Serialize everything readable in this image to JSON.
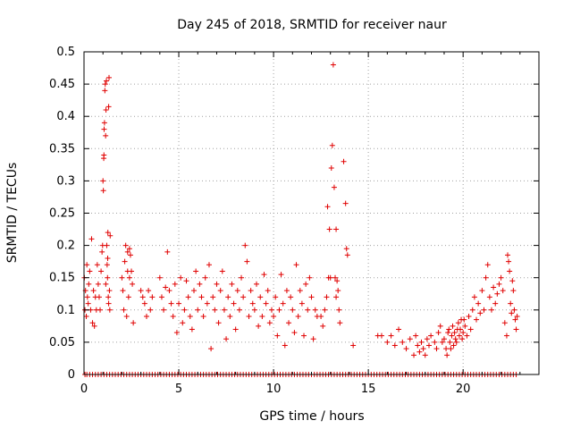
{
  "chart_data": {
    "type": "scatter",
    "title": "Day 245 of 2018, SRMTID for receiver naur",
    "xlabel": "GPS time / hours",
    "ylabel": "SRMTID / TECUs",
    "xlim": [
      0,
      24
    ],
    "ylim": [
      0,
      0.5
    ],
    "grid": true,
    "marker": "+",
    "color": "#e00000",
    "x_ticks": [
      0,
      5,
      10,
      15,
      20
    ],
    "x_tick_labels": [
      "0",
      "5",
      "10",
      "15",
      "20"
    ],
    "y_ticks": [
      0,
      0.05,
      0.1,
      0.15,
      0.2,
      0.25,
      0.3,
      0.35,
      0.4,
      0.45,
      0.5
    ],
    "y_tick_labels": [
      "0",
      "0.05",
      "0.1",
      "0.15",
      "0.2",
      "0.25",
      "0.3",
      "0.35",
      "0.4",
      "0.45",
      "0.5"
    ],
    "series": [
      {
        "name": "SRMTID",
        "points": [
          [
            0.02,
            0.15
          ],
          [
            0.05,
            0.1
          ],
          [
            0.08,
            0.13
          ],
          [
            0.12,
            0.09
          ],
          [
            0.15,
            0.17
          ],
          [
            0.18,
            0.12
          ],
          [
            0.22,
            0.11
          ],
          [
            0.25,
            0.14
          ],
          [
            0.3,
            0.16
          ],
          [
            0.35,
            0.1
          ],
          [
            0.4,
            0.21
          ],
          [
            0.45,
            0.08
          ],
          [
            0.5,
            0.13
          ],
          [
            0.55,
            0.075
          ],
          [
            0.6,
            0.12
          ],
          [
            0.65,
            0.1
          ],
          [
            0.7,
            0.17
          ],
          [
            0.75,
            0.14
          ],
          [
            0.8,
            0.12
          ],
          [
            0.85,
            0.1
          ],
          [
            0.9,
            0.16
          ],
          [
            0.95,
            0.19
          ],
          [
            1.0,
            0.3
          ],
          [
            1.02,
            0.285
          ],
          [
            1.04,
            0.335
          ],
          [
            1.06,
            0.38
          ],
          [
            1.08,
            0.39
          ],
          [
            1.1,
            0.44
          ],
          [
            1.12,
            0.45
          ],
          [
            1.14,
            0.37
          ],
          [
            1.16,
            0.41
          ],
          [
            1.18,
            0.455
          ],
          [
            1.2,
            0.2
          ],
          [
            1.22,
            0.17
          ],
          [
            1.24,
            0.15
          ],
          [
            1.26,
            0.22
          ],
          [
            1.28,
            0.12
          ],
          [
            1.3,
            0.415
          ],
          [
            1.32,
            0.46
          ],
          [
            1.34,
            0.13
          ],
          [
            1.36,
            0.1
          ],
          [
            1.38,
            0.215
          ],
          [
            1.05,
            0.34
          ],
          [
            0.98,
            0.2
          ],
          [
            1.15,
            0.14
          ],
          [
            1.25,
            0.18
          ],
          [
            1.3,
            0.11
          ],
          [
            2.0,
            0.15
          ],
          [
            2.05,
            0.13
          ],
          [
            2.1,
            0.1
          ],
          [
            2.15,
            0.175
          ],
          [
            2.2,
            0.2
          ],
          [
            2.25,
            0.09
          ],
          [
            2.3,
            0.19
          ],
          [
            2.35,
            0.12
          ],
          [
            2.4,
            0.15
          ],
          [
            2.45,
            0.185
          ],
          [
            2.5,
            0.16
          ],
          [
            2.55,
            0.14
          ],
          [
            2.6,
            0.08
          ],
          [
            2.3,
            0.16
          ],
          [
            2.4,
            0.195
          ],
          [
            3.0,
            0.13
          ],
          [
            3.1,
            0.12
          ],
          [
            3.2,
            0.11
          ],
          [
            3.3,
            0.09
          ],
          [
            3.4,
            0.13
          ],
          [
            3.5,
            0.1
          ],
          [
            3.6,
            0.12
          ],
          [
            4.0,
            0.15
          ],
          [
            4.1,
            0.12
          ],
          [
            4.2,
            0.1
          ],
          [
            4.3,
            0.135
          ],
          [
            4.4,
            0.19
          ],
          [
            4.5,
            0.13
          ],
          [
            4.6,
            0.11
          ],
          [
            4.7,
            0.09
          ],
          [
            4.8,
            0.14
          ],
          [
            4.9,
            0.065
          ],
          [
            5.0,
            0.11
          ],
          [
            5.1,
            0.15
          ],
          [
            5.2,
            0.08
          ],
          [
            5.3,
            0.1
          ],
          [
            5.4,
            0.145
          ],
          [
            5.5,
            0.12
          ],
          [
            5.6,
            0.09
          ],
          [
            5.7,
            0.07
          ],
          [
            5.8,
            0.13
          ],
          [
            5.9,
            0.16
          ],
          [
            6.0,
            0.1
          ],
          [
            6.1,
            0.14
          ],
          [
            6.2,
            0.12
          ],
          [
            6.3,
            0.09
          ],
          [
            6.4,
            0.15
          ],
          [
            6.5,
            0.11
          ],
          [
            6.6,
            0.17
          ],
          [
            6.7,
            0.04
          ],
          [
            6.8,
            0.12
          ],
          [
            6.9,
            0.1
          ],
          [
            7.0,
            0.14
          ],
          [
            7.1,
            0.08
          ],
          [
            7.2,
            0.13
          ],
          [
            7.3,
            0.16
          ],
          [
            7.4,
            0.1
          ],
          [
            7.5,
            0.055
          ],
          [
            7.6,
            0.12
          ],
          [
            7.7,
            0.09
          ],
          [
            7.8,
            0.14
          ],
          [
            7.9,
            0.11
          ],
          [
            8.0,
            0.07
          ],
          [
            8.1,
            0.13
          ],
          [
            8.2,
            0.1
          ],
          [
            8.3,
            0.15
          ],
          [
            8.4,
            0.12
          ],
          [
            8.5,
            0.2
          ],
          [
            8.6,
            0.175
          ],
          [
            8.7,
            0.09
          ],
          [
            8.8,
            0.13
          ],
          [
            8.9,
            0.11
          ],
          [
            9.0,
            0.1
          ],
          [
            9.1,
            0.14
          ],
          [
            9.2,
            0.075
          ],
          [
            9.3,
            0.12
          ],
          [
            9.4,
            0.09
          ],
          [
            9.5,
            0.155
          ],
          [
            9.6,
            0.11
          ],
          [
            9.7,
            0.13
          ],
          [
            9.8,
            0.08
          ],
          [
            9.9,
            0.1
          ],
          [
            10.0,
            0.09
          ],
          [
            10.1,
            0.12
          ],
          [
            10.2,
            0.06
          ],
          [
            10.3,
            0.1
          ],
          [
            10.4,
            0.155
          ],
          [
            10.5,
            0.11
          ],
          [
            10.6,
            0.045
          ],
          [
            10.7,
            0.13
          ],
          [
            10.8,
            0.08
          ],
          [
            10.9,
            0.12
          ],
          [
            11.0,
            0.1
          ],
          [
            11.1,
            0.065
          ],
          [
            11.2,
            0.17
          ],
          [
            11.3,
            0.09
          ],
          [
            11.4,
            0.13
          ],
          [
            11.5,
            0.11
          ],
          [
            11.6,
            0.06
          ],
          [
            11.7,
            0.14
          ],
          [
            11.8,
            0.1
          ],
          [
            11.9,
            0.15
          ],
          [
            12.0,
            0.12
          ],
          [
            12.1,
            0.055
          ],
          [
            12.2,
            0.1
          ],
          [
            12.3,
            0.09
          ],
          [
            12.5,
            0.09
          ],
          [
            12.6,
            0.075
          ],
          [
            12.7,
            0.1
          ],
          [
            12.8,
            0.12
          ],
          [
            12.85,
            0.26
          ],
          [
            12.9,
            0.15
          ],
          [
            12.95,
            0.225
          ],
          [
            13.0,
            0.15
          ],
          [
            13.05,
            0.32
          ],
          [
            13.1,
            0.355
          ],
          [
            13.15,
            0.48
          ],
          [
            13.2,
            0.29
          ],
          [
            13.25,
            0.15
          ],
          [
            13.3,
            0.12
          ],
          [
            13.35,
            0.145
          ],
          [
            13.4,
            0.13
          ],
          [
            13.45,
            0.1
          ],
          [
            13.5,
            0.08
          ],
          [
            13.7,
            0.33
          ],
          [
            13.8,
            0.265
          ],
          [
            13.85,
            0.195
          ],
          [
            13.9,
            0.185
          ],
          [
            14.2,
            0.045
          ],
          [
            13.3,
            0.225
          ],
          [
            15.5,
            0.06
          ],
          [
            15.7,
            0.06
          ],
          [
            16.0,
            0.05
          ],
          [
            16.2,
            0.06
          ],
          [
            16.4,
            0.045
          ],
          [
            16.6,
            0.07
          ],
          [
            16.8,
            0.05
          ],
          [
            17.0,
            0.04
          ],
          [
            17.2,
            0.055
          ],
          [
            17.4,
            0.03
          ],
          [
            17.5,
            0.06
          ],
          [
            17.6,
            0.045
          ],
          [
            17.7,
            0.035
          ],
          [
            17.8,
            0.05
          ],
          [
            17.9,
            0.04
          ],
          [
            18.0,
            0.03
          ],
          [
            18.1,
            0.055
          ],
          [
            18.2,
            0.045
          ],
          [
            18.3,
            0.06
          ],
          [
            18.5,
            0.05
          ],
          [
            18.6,
            0.04
          ],
          [
            18.7,
            0.065
          ],
          [
            18.8,
            0.075
          ],
          [
            18.9,
            0.05
          ],
          [
            19.0,
            0.055
          ],
          [
            19.1,
            0.04
          ],
          [
            19.2,
            0.065
          ],
          [
            19.3,
            0.05
          ],
          [
            19.4,
            0.06
          ],
          [
            19.5,
            0.045
          ],
          [
            19.6,
            0.055
          ],
          [
            19.7,
            0.07
          ],
          [
            19.8,
            0.06
          ],
          [
            19.9,
            0.085
          ],
          [
            20.0,
            0.065
          ],
          [
            20.1,
            0.075
          ],
          [
            20.2,
            0.06
          ],
          [
            20.3,
            0.09
          ],
          [
            20.4,
            0.07
          ],
          [
            19.15,
            0.03
          ],
          [
            19.25,
            0.07
          ],
          [
            19.35,
            0.04
          ],
          [
            19.45,
            0.075
          ],
          [
            19.55,
            0.065
          ],
          [
            19.65,
            0.05
          ],
          [
            19.75,
            0.08
          ],
          [
            19.85,
            0.07
          ],
          [
            19.95,
            0.055
          ],
          [
            20.05,
            0.085
          ],
          [
            20.5,
            0.1
          ],
          [
            20.6,
            0.12
          ],
          [
            20.7,
            0.085
          ],
          [
            20.8,
            0.11
          ],
          [
            20.9,
            0.095
          ],
          [
            21.0,
            0.13
          ],
          [
            21.1,
            0.1
          ],
          [
            21.2,
            0.15
          ],
          [
            21.3,
            0.17
          ],
          [
            21.4,
            0.12
          ],
          [
            21.5,
            0.1
          ],
          [
            21.6,
            0.135
          ],
          [
            21.7,
            0.11
          ],
          [
            21.8,
            0.125
          ],
          [
            21.9,
            0.14
          ],
          [
            22.0,
            0.15
          ],
          [
            22.1,
            0.13
          ],
          [
            22.2,
            0.08
          ],
          [
            22.3,
            0.06
          ],
          [
            22.35,
            0.185
          ],
          [
            22.4,
            0.175
          ],
          [
            22.45,
            0.16
          ],
          [
            22.5,
            0.11
          ],
          [
            22.55,
            0.095
          ],
          [
            22.6,
            0.145
          ],
          [
            22.65,
            0.13
          ],
          [
            22.7,
            0.1
          ],
          [
            22.75,
            0.085
          ],
          [
            22.8,
            0.07
          ],
          [
            22.85,
            0.09
          ]
        ],
        "zero_points_x": [
          0.05,
          0.15,
          0.3,
          0.45,
          0.6,
          0.75,
          0.9,
          1.05,
          1.2,
          1.35,
          1.5,
          1.65,
          1.8,
          1.95,
          2.1,
          2.25,
          2.4,
          2.55,
          2.7,
          2.85,
          3.0,
          3.15,
          3.3,
          3.45,
          3.6,
          3.75,
          3.9,
          4.05,
          4.2,
          4.35,
          4.5,
          4.65,
          4.8,
          4.95,
          5.1,
          5.25,
          5.4,
          5.55,
          5.7,
          5.85,
          6.0,
          6.15,
          6.3,
          6.45,
          6.6,
          6.75,
          6.9,
          7.05,
          7.2,
          7.35,
          7.5,
          7.65,
          7.8,
          7.95,
          8.1,
          8.25,
          8.4,
          8.55,
          8.7,
          8.85,
          9.0,
          9.15,
          9.3,
          9.45,
          9.6,
          9.75,
          9.9,
          10.05,
          10.2,
          10.35,
          10.5,
          10.65,
          10.8,
          10.95,
          11.1,
          11.25,
          11.4,
          11.55,
          11.7,
          11.85,
          12.0,
          12.15,
          12.3,
          12.45,
          12.6,
          12.75,
          12.9,
          13.05,
          13.2,
          13.35,
          13.5,
          13.65,
          13.8,
          13.95,
          14.1,
          14.25,
          14.4,
          14.55,
          14.7,
          14.85,
          15.0,
          15.15,
          15.3,
          15.45,
          15.6,
          15.75,
          15.9,
          16.05,
          16.2,
          16.35,
          16.5,
          16.65,
          16.8,
          16.95,
          17.1,
          17.25,
          17.4,
          17.55,
          17.7,
          17.85,
          18.0,
          18.15,
          18.3,
          18.45,
          18.6,
          18.75,
          18.9,
          19.05,
          19.2,
          19.35,
          19.5,
          19.65,
          19.8,
          19.95,
          20.1,
          20.25,
          20.4,
          20.55,
          20.7,
          20.85,
          21.0,
          21.15,
          21.3,
          21.45,
          21.6,
          21.75,
          21.9,
          22.05,
          22.2,
          22.35,
          22.5,
          22.65,
          22.8
        ]
      }
    ]
  }
}
